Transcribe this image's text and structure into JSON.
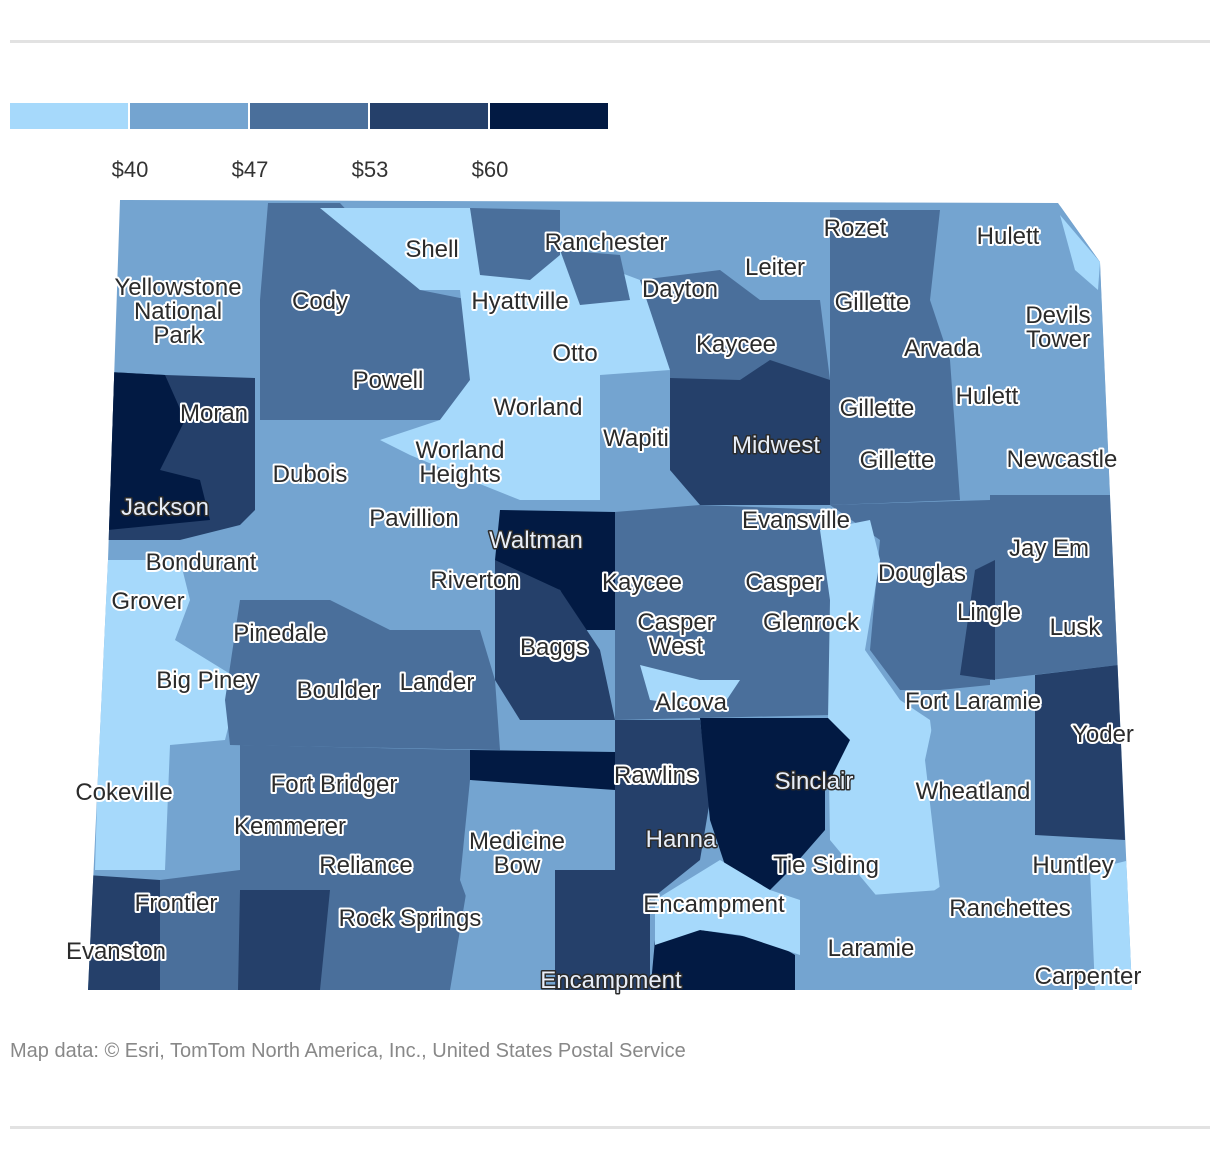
{
  "legend": {
    "colors": [
      "#a6d9fb",
      "#74a4d0",
      "#4a6f9b",
      "#25406a",
      "#021a43"
    ],
    "ticks": [
      "$40",
      "$47",
      "$53",
      "$60"
    ]
  },
  "places": [
    "Shell",
    "Ranchester",
    "Rozet",
    "Hulett",
    "Yellowstone National Park",
    "Cody",
    "Hyattville",
    "Dayton",
    "Leiter",
    "Gillette",
    "Devils Tower",
    "Otto",
    "Kaycee",
    "Arvada",
    "Powell",
    "Moran",
    "Worland",
    "Gillette",
    "Hulett",
    "Wapiti",
    "Worland Heights",
    "Midwest",
    "Gillette",
    "Dubois",
    "Newcastle",
    "Jackson",
    "Pavillion",
    "Evansville",
    "Waltman",
    "Jay Em",
    "Bondurant",
    "Kaycee",
    "Casper",
    "Douglas",
    "Riverton",
    "Grover",
    "Lingle",
    "Casper West",
    "Glenrock",
    "Lusk",
    "Pinedale",
    "Baggs",
    "Big Piney",
    "Lander",
    "Boulder",
    "Alcova",
    "Fort Laramie",
    "Yoder",
    "Rawlins",
    "Sinclair",
    "Cokeville",
    "Fort Bridger",
    "Wheatland",
    "Kemmerer",
    "Hanna",
    "Medicine Bow",
    "Reliance",
    "Tie Siding",
    "Huntley",
    "Frontier",
    "Encampment",
    "Rock Springs",
    "Ranchettes",
    "Evanston",
    "Laramie",
    "Encampment",
    "Carpenter"
  ],
  "source": "Map data: © Esri, TomTom North America, Inc., United States Postal Service"
}
